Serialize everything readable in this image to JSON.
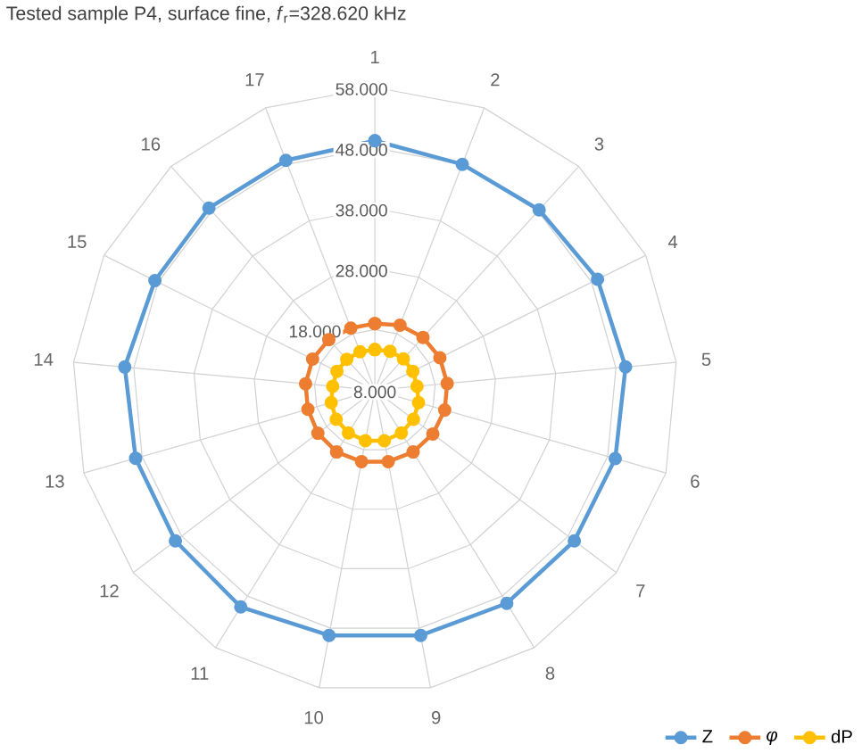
{
  "chart_data": {
    "type": "radar",
    "title": "Tested sample P4, surface fine, *f*$_{r}$=328.620 kHz",
    "categories": [
      "1",
      "2",
      "3",
      "4",
      "5",
      "6",
      "7",
      "8",
      "9",
      "10",
      "11",
      "12",
      "13",
      "14",
      "15",
      "16",
      "17"
    ],
    "series": [
      {
        "name": "Z",
        "color": "#5b9bd5",
        "values": [
          49.2,
          48.0,
          48.3,
          49.1,
          49.6,
          49.3,
          49.3,
          49.4,
          49.2,
          49.2,
          50.1,
          49.3,
          49.1,
          49.5,
          48.6,
          48.7,
          48.7
        ]
      },
      {
        "name": "*φ*",
        "color": "#ed7d31",
        "values": [
          19.0,
          19.5,
          19.8,
          20.0,
          20.0,
          20.0,
          20.0,
          20.0,
          20.0,
          20.0,
          20.0,
          19.8,
          19.5,
          19.5,
          19.5,
          19.3,
          19.0
        ]
      },
      {
        "name": "dP",
        "color": "#ffc000",
        "values": [
          14.7,
          14.9,
          15.0,
          15.0,
          15.0,
          15.5,
          16.0,
          16.3,
          16.5,
          16.5,
          16.3,
          16.0,
          15.5,
          15.0,
          15.0,
          14.9,
          14.8
        ]
      }
    ],
    "ylim": [
      8,
      58
    ],
    "yticks": [
      {
        "value": 8,
        "label": "8.000"
      },
      {
        "value": 18,
        "label": "18.000"
      },
      {
        "value": 28,
        "label": "28.000"
      },
      {
        "value": 38,
        "label": "38.000"
      },
      {
        "value": 48,
        "label": "48.000"
      },
      {
        "value": 58,
        "label": "58.000"
      }
    ],
    "grid": true,
    "legend": "bottom right",
    "marker": "circle"
  }
}
